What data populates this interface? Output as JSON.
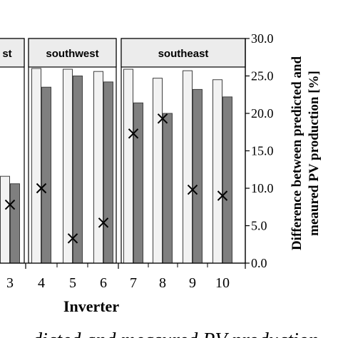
{
  "chart_data": {
    "type": "bar",
    "xlabel": "Inverter",
    "ylabel_line1": "Difference between predicted and",
    "ylabel_line2": "meaured PV production [%]",
    "ylim": [
      0,
      30
    ],
    "yticks": [
      "0.0",
      "5.0",
      "10.0",
      "15.0",
      "20.0",
      "25.0",
      "30.0"
    ],
    "grid": true,
    "categories": [
      "3",
      "4",
      "5",
      "6",
      "7",
      "8",
      "9",
      "10"
    ],
    "panels": [
      {
        "label": "st",
        "categories": [
          "3"
        ]
      },
      {
        "label": "southwest",
        "categories": [
          "4",
          "5",
          "6"
        ]
      },
      {
        "label": "southeast",
        "categories": [
          "7",
          "8",
          "9",
          "10"
        ]
      }
    ],
    "series": [
      {
        "style": "white-bar",
        "color": "#f2f2f2",
        "values": [
          11.6,
          26.0,
          25.9,
          25.6,
          25.9,
          24.7,
          25.7,
          24.5
        ]
      },
      {
        "style": "gray-bar",
        "color": "#7f7f7f",
        "values": [
          10.6,
          23.5,
          25.0,
          24.2,
          21.4,
          20.0,
          23.2,
          22.2
        ]
      },
      {
        "style": "x-marker",
        "color": "#000000",
        "values": [
          7.8,
          10.0,
          3.3,
          5.4,
          17.3,
          19.3,
          9.8,
          9.0
        ]
      }
    ],
    "caption_fragment": "dicted and measured PV production"
  }
}
